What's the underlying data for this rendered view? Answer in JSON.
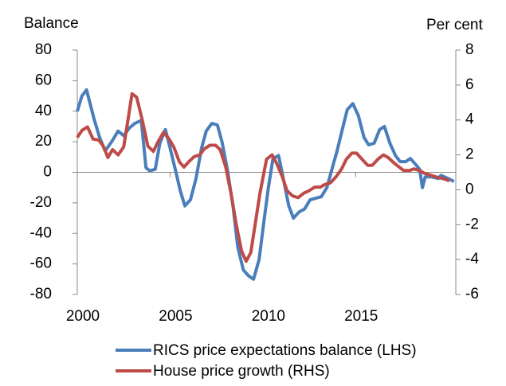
{
  "chart_data": {
    "type": "line",
    "y_label": "Balance",
    "y2_label": "Per cent",
    "xlim": [
      2000,
      2020.4
    ],
    "xticks": [
      2000,
      2005,
      2010,
      2015
    ],
    "ylim": [
      -80,
      80
    ],
    "yticks": [
      -80,
      -60,
      -40,
      -20,
      0,
      20,
      40,
      60,
      80
    ],
    "y2lim": [
      -6,
      8
    ],
    "y2ticks": [
      -6,
      -4,
      -2,
      0,
      2,
      4,
      6,
      8
    ],
    "legend": "bottom",
    "series": [
      {
        "name": "RICS price expectations balance (LHS)",
        "color": "#4a7ebb",
        "axis": "y",
        "x": [
          2000,
          2000.25,
          2000.5,
          2000.9,
          2001.2,
          2001.5,
          2001.85,
          2002.2,
          2002.5,
          2002.8,
          2003.1,
          2003.45,
          2003.7,
          2003.9,
          2004.2,
          2004.45,
          2004.75,
          2005,
          2005.3,
          2005.55,
          2005.8,
          2006.1,
          2006.4,
          2006.7,
          2006.95,
          2007.25,
          2007.55,
          2007.8,
          2008.1,
          2008.4,
          2008.65,
          2008.95,
          2009.25,
          2009.5,
          2009.8,
          2010.05,
          2010.3,
          2010.55,
          2010.85,
          2011.1,
          2011.4,
          2011.65,
          2011.95,
          2012.25,
          2012.55,
          2012.85,
          2013.15,
          2013.45,
          2013.7,
          2014.0,
          2014.3,
          2014.55,
          2014.85,
          2015.15,
          2015.45,
          2015.7,
          2016.0,
          2016.3,
          2016.55,
          2016.85,
          2017.15,
          2017.4,
          2017.7,
          2017.95,
          2018.25,
          2018.45,
          2018.6,
          2018.75,
          2019.1,
          2019.45,
          2019.6,
          2020.05,
          2020.3
        ],
        "values": [
          40,
          50,
          54,
          35,
          23,
          14,
          20,
          27,
          24,
          29,
          32,
          34,
          3,
          1,
          2,
          19,
          28,
          16,
          1,
          -12,
          -22,
          -18,
          -4,
          16,
          27,
          32,
          31,
          20,
          1,
          -23,
          -49,
          -64,
          -68,
          -70,
          -57,
          -33,
          -10,
          9,
          11,
          -4,
          -22,
          -30,
          -26,
          -24,
          -18,
          -17,
          -16,
          -10,
          1,
          14,
          29,
          41,
          45,
          37,
          23,
          18,
          19,
          28,
          30,
          19,
          11,
          7,
          7,
          9,
          5,
          2,
          -10,
          -3,
          -3,
          -4,
          -2,
          -4.5,
          -6
        ]
      },
      {
        "name": "House price growth (RHS)",
        "color": "#be4b48",
        "axis": "y2",
        "x": [
          2000,
          2000.25,
          2000.55,
          2000.85,
          2001.15,
          2001.4,
          2001.65,
          2001.9,
          2002.2,
          2002.5,
          2002.7,
          2002.95,
          2003.2,
          2003.5,
          2003.8,
          2004.1,
          2004.35,
          2004.65,
          2004.95,
          2005.2,
          2005.5,
          2005.75,
          2006.05,
          2006.3,
          2006.6,
          2006.85,
          2007.15,
          2007.45,
          2007.7,
          2008.0,
          2008.3,
          2008.55,
          2008.85,
          2009.1,
          2009.35,
          2009.6,
          2009.85,
          2010.2,
          2010.5,
          2010.75,
          2011.05,
          2011.3,
          2011.6,
          2011.9,
          2012.2,
          2012.5,
          2012.8,
          2013.1,
          2013.35,
          2013.65,
          2013.95,
          2014.25,
          2014.5,
          2014.8,
          2015.05,
          2015.35,
          2015.65,
          2015.9,
          2016.2,
          2016.5,
          2016.75,
          2017.05,
          2017.35,
          2017.6,
          2017.9,
          2018.15,
          2018.45,
          2018.7,
          2019.0,
          2019.3,
          2019.85,
          2020.05
        ],
        "values": [
          3.0,
          3.4,
          3.6,
          2.9,
          2.85,
          2.5,
          1.85,
          2.3,
          2.0,
          2.45,
          3.8,
          5.5,
          5.3,
          4.0,
          2.5,
          2.2,
          2.75,
          3.3,
          2.9,
          2.45,
          1.6,
          1.3,
          1.65,
          1.9,
          2.0,
          2.35,
          2.55,
          2.55,
          2.3,
          1.3,
          -0.3,
          -1.9,
          -3.5,
          -4.1,
          -3.6,
          -1.9,
          -0.15,
          1.75,
          2.0,
          1.5,
          0.75,
          -0.05,
          -0.35,
          -0.45,
          -0.2,
          -0.05,
          0.15,
          0.15,
          0.3,
          0.4,
          0.75,
          1.2,
          1.75,
          2.1,
          2.1,
          1.75,
          1.4,
          1.4,
          1.75,
          2.0,
          1.85,
          1.55,
          1.3,
          1.1,
          1.1,
          1.2,
          1.1,
          0.95,
          0.85,
          0.75,
          0.6,
          0.5
        ]
      }
    ]
  }
}
